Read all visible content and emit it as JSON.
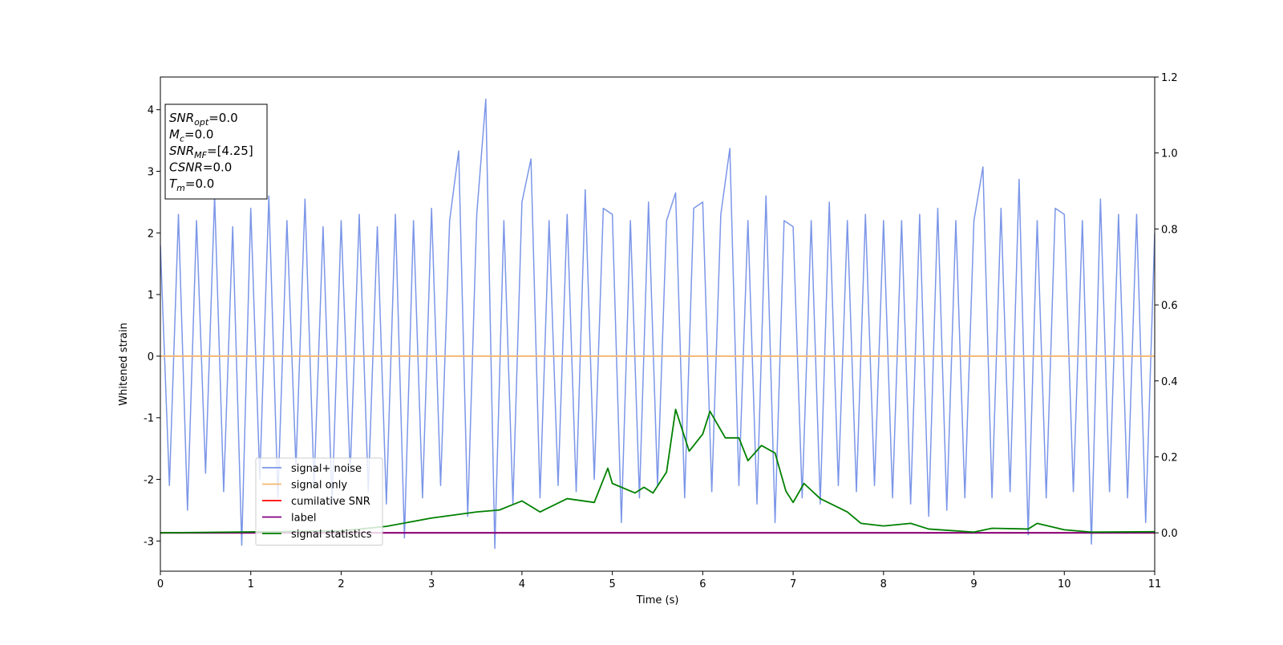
{
  "chart_data": {
    "type": "line",
    "xlabel": "Time (s)",
    "ylabel": "Whitened strain",
    "xlim": [
      0,
      11
    ],
    "xticks": [
      0,
      1,
      2,
      3,
      4,
      5,
      6,
      7,
      8,
      9,
      10,
      11
    ],
    "ylim": [
      -3.49,
      4.53
    ],
    "yticks": [
      -3,
      -2,
      -1,
      0,
      1,
      2,
      3,
      4
    ],
    "y2lim": [
      -0.101,
      1.2
    ],
    "y2ticks": [
      {
        "value": 0,
        "label": "0.0"
      },
      {
        "value": 0.2,
        "label": "0.2"
      },
      {
        "value": 0.4,
        "label": "0.4"
      },
      {
        "value": 0.6,
        "label": "0.6"
      },
      {
        "value": 0.8,
        "label": "0.8"
      },
      {
        "value": 1.0,
        "label": "1.0"
      },
      {
        "value": 1.2,
        "label": "1.2"
      }
    ],
    "legend": "lower left",
    "annotation": [
      [
        {
          "text": "SNR"
        },
        {
          "sub": "opt"
        },
        {
          "text": "=0.0"
        }
      ],
      [
        {
          "text": "M"
        },
        {
          "sub": "c"
        },
        {
          "text": "=0.0"
        }
      ],
      [
        {
          "text": "SNR"
        },
        {
          "sub": "MF"
        },
        {
          "text": "=[4.25]"
        }
      ],
      [
        {
          "text": "CSNR"
        },
        {
          "text": "=0.0"
        }
      ],
      [
        {
          "text": "T"
        },
        {
          "sub": "m"
        },
        {
          "text": "=0.0"
        }
      ]
    ],
    "series": [
      {
        "name": "signal+ noise",
        "color": "#7b96e8",
        "x": [
          0,
          0.1,
          0.2,
          0.3,
          0.4,
          0.5,
          0.6,
          0.7,
          0.8,
          0.9,
          1,
          1.1,
          1.2,
          1.3,
          1.4,
          1.5,
          1.6,
          1.7,
          1.8,
          1.9,
          2,
          2.1,
          2.2,
          2.3,
          2.4,
          2.5,
          2.6,
          2.7,
          2.8,
          2.9,
          3,
          3.1,
          3.2,
          3.3,
          3.4,
          3.5,
          3.6,
          3.7,
          3.8,
          3.9,
          4,
          4.1,
          4.2,
          4.3,
          4.4,
          4.5,
          4.6,
          4.7,
          4.8,
          4.9,
          5,
          5.1,
          5.2,
          5.3,
          5.4,
          5.5,
          5.6,
          5.7,
          5.8,
          5.9,
          6,
          6.1,
          6.2,
          6.3,
          6.4,
          6.5,
          6.6,
          6.7,
          6.8,
          6.9,
          7,
          7.1,
          7.2,
          7.3,
          7.4,
          7.5,
          7.6,
          7.7,
          7.8,
          7.9,
          8,
          8.1,
          8.2,
          8.3,
          8.4,
          8.5,
          8.6,
          8.7,
          8.8,
          8.9,
          9,
          9.1,
          9.2,
          9.3,
          9.4,
          9.5,
          9.6,
          9.7,
          9.8,
          9.9,
          10,
          10.1,
          10.2,
          10.3,
          10.4,
          10.5,
          10.6,
          10.7,
          10.8,
          10.9,
          11
        ],
        "values": [
          1.8,
          -2.1,
          2.3,
          -2.5,
          2.2,
          -1.9,
          2.6,
          -2.2,
          2.1,
          -3.07,
          2.4,
          -2.0,
          2.6,
          -2.3,
          2.2,
          -1.8,
          2.55,
          -2.1,
          2.1,
          -2.4,
          2.2,
          -1.9,
          2.3,
          -2.2,
          2.1,
          -2.4,
          2.3,
          -2.95,
          2.2,
          -2.3,
          2.4,
          -2.1,
          2.2,
          3.33,
          -2.6,
          2.3,
          4.17,
          -3.12,
          2.2,
          -2.4,
          2.5,
          3.2,
          -2.3,
          2.2,
          -2.1,
          2.3,
          -2.2,
          2.7,
          -2.0,
          2.4,
          2.3,
          -2.7,
          2.2,
          -2.3,
          2.5,
          -2.1,
          2.2,
          2.65,
          -2.3,
          2.4,
          2.5,
          -2.2,
          2.3,
          3.37,
          -2.1,
          2.2,
          -2.4,
          2.6,
          -2.7,
          2.2,
          2.1,
          -2.3,
          2.2,
          -2.4,
          2.5,
          -2.1,
          2.2,
          -2.2,
          2.3,
          -2.1,
          2.2,
          -2.3,
          2.2,
          -2.4,
          2.3,
          -2.6,
          2.4,
          -2.5,
          2.2,
          -2.3,
          2.2,
          3.07,
          -2.3,
          2.4,
          -2.2,
          2.87,
          -2.9,
          2.2,
          -2.3,
          2.4,
          2.3,
          -2.2,
          2.2,
          -3.05,
          2.55,
          -2.2,
          2.3,
          -2.3,
          2.3,
          -2.7,
          2.0
        ]
      },
      {
        "name": "signal only",
        "color": "#f5b673",
        "x": [
          0,
          11
        ],
        "values": [
          0,
          0
        ]
      },
      {
        "name": "cumilative SNR",
        "color": "#ff0000",
        "axis": "y2",
        "x": [
          0,
          11
        ],
        "values": [
          0,
          0
        ]
      },
      {
        "name": "label",
        "color": "#800080",
        "axis": "y2",
        "x": [
          0,
          11
        ],
        "values": [
          0,
          0
        ]
      },
      {
        "name": "signal statistics",
        "color": "#008000",
        "axis": "y2",
        "x": [
          0,
          2,
          2.5,
          3,
          3.5,
          3.75,
          4,
          4.2,
          4.5,
          4.8,
          4.95,
          5,
          5.25,
          5.35,
          5.45,
          5.6,
          5.7,
          5.85,
          6,
          6.08,
          6.25,
          6.4,
          6.5,
          6.65,
          6.8,
          6.92,
          7,
          7.12,
          7.3,
          7.6,
          7.75,
          8,
          8.3,
          8.5,
          9,
          9.2,
          9.6,
          9.7,
          10,
          10.3,
          11
        ],
        "values": [
          0,
          0.005,
          0.017,
          0.039,
          0.055,
          0.06,
          0.084,
          0.055,
          0.09,
          0.08,
          0.17,
          0.13,
          0.105,
          0.12,
          0.105,
          0.16,
          0.325,
          0.215,
          0.26,
          0.32,
          0.25,
          0.25,
          0.19,
          0.23,
          0.21,
          0.11,
          0.08,
          0.13,
          0.09,
          0.055,
          0.025,
          0.018,
          0.025,
          0.01,
          0.002,
          0.012,
          0.01,
          0.025,
          0.008,
          0.002,
          0.003
        ]
      }
    ]
  }
}
